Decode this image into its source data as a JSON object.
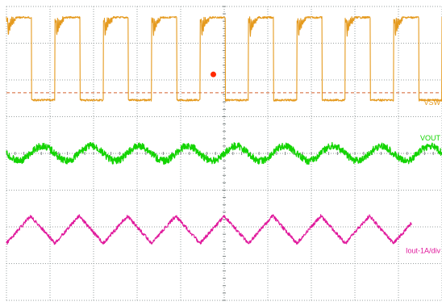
{
  "chart_data": {
    "type": "line",
    "grid": true,
    "divisions": {
      "x": 10,
      "y": 8
    },
    "trigger_marker_color": "#ff2a00",
    "trigger_level_color": "#d4602c",
    "series": [
      {
        "name": "VSW",
        "color": "#e59a1e",
        "kind": "switching",
        "high_div": 0.3,
        "low_div": 2.55,
        "cycles": 9,
        "duty": 0.52
      },
      {
        "name": "VOUT",
        "color": "#12d400",
        "kind": "ripple",
        "center_div": 4.0,
        "amplitude_div": 0.2,
        "cycles": 9
      },
      {
        "name": "Iout-1A/div",
        "color": "#e0199c",
        "kind": "triangle",
        "low_div": 6.45,
        "high_div": 5.7,
        "cycles": 9
      }
    ]
  }
}
